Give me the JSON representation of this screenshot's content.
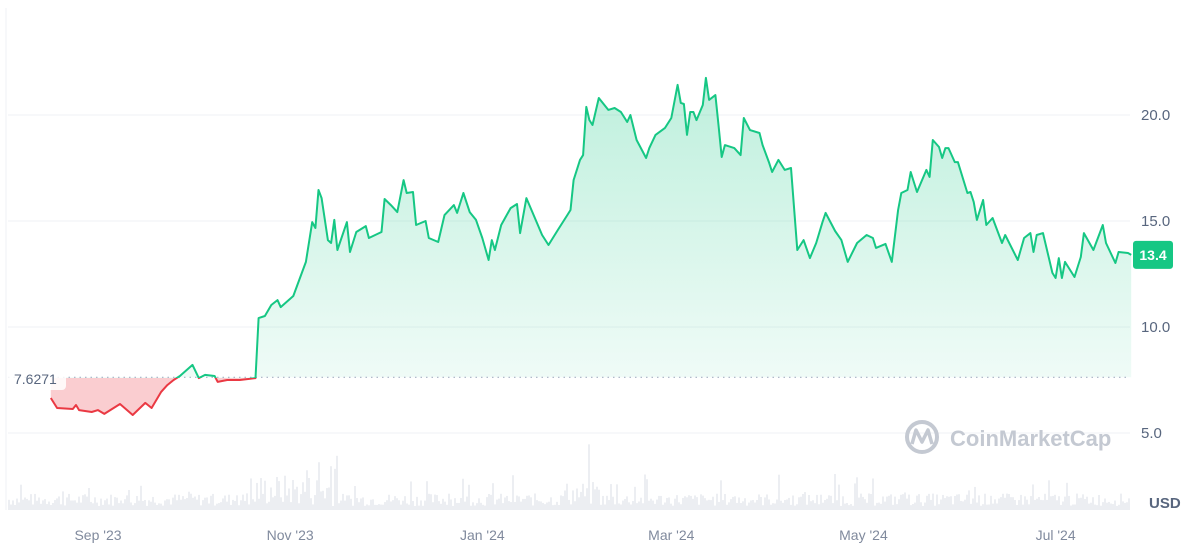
{
  "chart_data": {
    "type": "area",
    "currency_label": "USD",
    "watermark": "CoinMarketCap",
    "baseline": {
      "value": 7.6271,
      "label": "7.6271"
    },
    "current_price": {
      "value": 13.4,
      "label": "13.4"
    },
    "colors": {
      "up": "#16c784",
      "down": "#ea3943",
      "grid": "#eff2f5",
      "volume": "#eceef2"
    },
    "y_axis": {
      "position": "right",
      "ticks": [
        {
          "value": 5,
          "label": "5.0"
        },
        {
          "value": 10,
          "label": "10.0"
        },
        {
          "value": 15,
          "label": "15.0"
        },
        {
          "value": 20,
          "label": "20.0"
        }
      ],
      "grid": true
    },
    "x_axis": {
      "ticks": [
        {
          "date": "2023-09-01",
          "label": "Sep '23"
        },
        {
          "date": "2023-11-01",
          "label": "Nov '23"
        },
        {
          "date": "2024-01-01",
          "label": "Jan '24"
        },
        {
          "date": "2024-03-01",
          "label": "Mar '24"
        },
        {
          "date": "2024-05-01",
          "label": "May '24"
        },
        {
          "date": "2024-07-01",
          "label": "Jul '24"
        }
      ]
    },
    "series": [
      {
        "points": [
          [
            "2023-08-17",
            6.65
          ],
          [
            "2023-08-19",
            6.18
          ],
          [
            "2023-08-24",
            6.13
          ],
          [
            "2023-08-25",
            6.32
          ],
          [
            "2023-08-26",
            6.08
          ],
          [
            "2023-08-30",
            5.99
          ],
          [
            "2023-09-01",
            6.08
          ],
          [
            "2023-09-03",
            5.9
          ],
          [
            "2023-09-08",
            6.37
          ],
          [
            "2023-09-12",
            5.85
          ],
          [
            "2023-09-16",
            6.42
          ],
          [
            "2023-09-18",
            6.18
          ],
          [
            "2023-09-21",
            6.93
          ],
          [
            "2023-09-23",
            7.26
          ],
          [
            "2023-09-25",
            7.5
          ],
          [
            "2023-09-27",
            7.69
          ],
          [
            "2023-10-01",
            8.21
          ],
          [
            "2023-10-03",
            7.59
          ],
          [
            "2023-10-05",
            7.74
          ],
          [
            "2023-10-08",
            7.69
          ],
          [
            "2023-10-09",
            7.41
          ],
          [
            "2023-10-12",
            7.5
          ],
          [
            "2023-10-16",
            7.5
          ],
          [
            "2023-10-19",
            7.55
          ],
          [
            "2023-10-21",
            7.59
          ],
          [
            "2023-10-22",
            10.42
          ],
          [
            "2023-10-24",
            10.52
          ],
          [
            "2023-10-26",
            11.04
          ],
          [
            "2023-10-28",
            11.27
          ],
          [
            "2023-10-29",
            10.94
          ],
          [
            "2023-11-02",
            11.46
          ],
          [
            "2023-11-06",
            13.07
          ],
          [
            "2023-11-08",
            14.95
          ],
          [
            "2023-11-09",
            14.67
          ],
          [
            "2023-11-10",
            16.46
          ],
          [
            "2023-11-11",
            16.08
          ],
          [
            "2023-11-13",
            14.1
          ],
          [
            "2023-11-14",
            13.96
          ],
          [
            "2023-11-15",
            15.05
          ],
          [
            "2023-11-16",
            13.63
          ],
          [
            "2023-11-19",
            14.95
          ],
          [
            "2023-11-20",
            13.54
          ],
          [
            "2023-11-22",
            14.48
          ],
          [
            "2023-11-25",
            14.76
          ],
          [
            "2023-11-26",
            14.2
          ],
          [
            "2023-11-30",
            14.48
          ],
          [
            "2023-12-01",
            16.04
          ],
          [
            "2023-12-03",
            15.75
          ],
          [
            "2023-12-05",
            15.42
          ],
          [
            "2023-12-07",
            16.93
          ],
          [
            "2023-12-08",
            16.32
          ],
          [
            "2023-12-10",
            16.37
          ],
          [
            "2023-12-11",
            14.81
          ],
          [
            "2023-12-14",
            15.0
          ],
          [
            "2023-12-15",
            14.2
          ],
          [
            "2023-12-18",
            14.01
          ],
          [
            "2023-12-20",
            15.28
          ],
          [
            "2023-12-23",
            15.75
          ],
          [
            "2023-12-24",
            15.38
          ],
          [
            "2023-12-26",
            16.32
          ],
          [
            "2023-12-28",
            15.42
          ],
          [
            "2023-12-30",
            15.05
          ],
          [
            "2024-01-01",
            14.2
          ],
          [
            "2024-01-03",
            13.16
          ],
          [
            "2024-01-04",
            14.1
          ],
          [
            "2024-01-05",
            13.63
          ],
          [
            "2024-01-07",
            14.81
          ],
          [
            "2024-01-10",
            15.61
          ],
          [
            "2024-01-12",
            15.8
          ],
          [
            "2024-01-13",
            14.43
          ],
          [
            "2024-01-15",
            16.08
          ],
          [
            "2024-01-17",
            15.38
          ],
          [
            "2024-01-20",
            14.34
          ],
          [
            "2024-01-22",
            13.87
          ],
          [
            "2024-01-25",
            14.58
          ],
          [
            "2024-01-28",
            15.28
          ],
          [
            "2024-01-29",
            15.52
          ],
          [
            "2024-01-30",
            16.93
          ],
          [
            "2024-02-01",
            17.88
          ],
          [
            "2024-02-02",
            18.11
          ],
          [
            "2024-02-03",
            20.38
          ],
          [
            "2024-02-04",
            19.76
          ],
          [
            "2024-02-05",
            19.53
          ],
          [
            "2024-02-07",
            20.8
          ],
          [
            "2024-02-10",
            20.24
          ],
          [
            "2024-02-12",
            20.33
          ],
          [
            "2024-02-14",
            20.14
          ],
          [
            "2024-02-16",
            19.67
          ],
          [
            "2024-02-17",
            20.0
          ],
          [
            "2024-02-19",
            18.82
          ],
          [
            "2024-02-22",
            17.97
          ],
          [
            "2024-02-23",
            18.44
          ],
          [
            "2024-02-25",
            19.06
          ],
          [
            "2024-02-28",
            19.39
          ],
          [
            "2024-03-01",
            19.86
          ],
          [
            "2024-03-03",
            21.42
          ],
          [
            "2024-03-04",
            20.57
          ],
          [
            "2024-03-05",
            20.52
          ],
          [
            "2024-03-06",
            19.06
          ],
          [
            "2024-03-07",
            20.14
          ],
          [
            "2024-03-08",
            20.14
          ],
          [
            "2024-03-09",
            19.76
          ],
          [
            "2024-03-11",
            20.47
          ],
          [
            "2024-03-12",
            21.75
          ],
          [
            "2024-03-13",
            20.71
          ],
          [
            "2024-03-15",
            20.94
          ],
          [
            "2024-03-16",
            19.53
          ],
          [
            "2024-03-17",
            18.02
          ],
          [
            "2024-03-18",
            18.58
          ],
          [
            "2024-03-21",
            18.44
          ],
          [
            "2024-03-23",
            18.11
          ],
          [
            "2024-03-24",
            19.86
          ],
          [
            "2024-03-26",
            19.29
          ],
          [
            "2024-03-29",
            19.15
          ],
          [
            "2024-03-30",
            18.58
          ],
          [
            "2024-04-01",
            17.78
          ],
          [
            "2024-04-02",
            17.31
          ],
          [
            "2024-04-04",
            17.88
          ],
          [
            "2024-04-06",
            17.41
          ],
          [
            "2024-04-08",
            17.5
          ],
          [
            "2024-04-10",
            13.63
          ],
          [
            "2024-04-12",
            14.1
          ],
          [
            "2024-04-14",
            13.25
          ],
          [
            "2024-04-16",
            13.96
          ],
          [
            "2024-04-18",
            14.95
          ],
          [
            "2024-04-19",
            15.38
          ],
          [
            "2024-04-22",
            14.53
          ],
          [
            "2024-04-24",
            14.1
          ],
          [
            "2024-04-26",
            13.07
          ],
          [
            "2024-04-29",
            13.96
          ],
          [
            "2024-05-02",
            14.34
          ],
          [
            "2024-05-04",
            14.2
          ],
          [
            "2024-05-05",
            13.73
          ],
          [
            "2024-05-08",
            13.92
          ],
          [
            "2024-05-10",
            13.07
          ],
          [
            "2024-05-12",
            15.52
          ],
          [
            "2024-05-13",
            16.32
          ],
          [
            "2024-05-15",
            16.46
          ],
          [
            "2024-05-16",
            17.31
          ],
          [
            "2024-05-18",
            16.37
          ],
          [
            "2024-05-21",
            17.41
          ],
          [
            "2024-05-22",
            17.08
          ],
          [
            "2024-05-23",
            18.82
          ],
          [
            "2024-05-25",
            18.49
          ],
          [
            "2024-05-26",
            17.97
          ],
          [
            "2024-05-27",
            18.44
          ],
          [
            "2024-05-28",
            18.44
          ],
          [
            "2024-05-30",
            17.78
          ],
          [
            "2024-05-31",
            17.78
          ],
          [
            "2024-06-03",
            16.32
          ],
          [
            "2024-06-04",
            16.37
          ],
          [
            "2024-06-05",
            15.9
          ],
          [
            "2024-06-06",
            15.05
          ],
          [
            "2024-06-08",
            15.99
          ],
          [
            "2024-06-09",
            14.81
          ],
          [
            "2024-06-11",
            15.14
          ],
          [
            "2024-06-14",
            13.96
          ],
          [
            "2024-06-15",
            14.34
          ],
          [
            "2024-06-19",
            13.16
          ],
          [
            "2024-06-21",
            14.2
          ],
          [
            "2024-06-23",
            14.43
          ],
          [
            "2024-06-24",
            13.54
          ],
          [
            "2024-06-25",
            14.34
          ],
          [
            "2024-06-27",
            14.43
          ],
          [
            "2024-06-30",
            12.55
          ],
          [
            "2024-07-01",
            12.31
          ],
          [
            "2024-07-02",
            13.25
          ],
          [
            "2024-07-03",
            12.31
          ],
          [
            "2024-07-04",
            13.07
          ],
          [
            "2024-07-07",
            12.36
          ],
          [
            "2024-07-09",
            13.3
          ],
          [
            "2024-07-10",
            14.43
          ],
          [
            "2024-07-13",
            13.63
          ],
          [
            "2024-07-16",
            14.81
          ],
          [
            "2024-07-17",
            13.96
          ],
          [
            "2024-07-20",
            13.02
          ],
          [
            "2024-07-21",
            13.54
          ],
          [
            "2024-07-24",
            13.49
          ],
          [
            "2024-07-25",
            13.4
          ]
        ]
      }
    ]
  }
}
